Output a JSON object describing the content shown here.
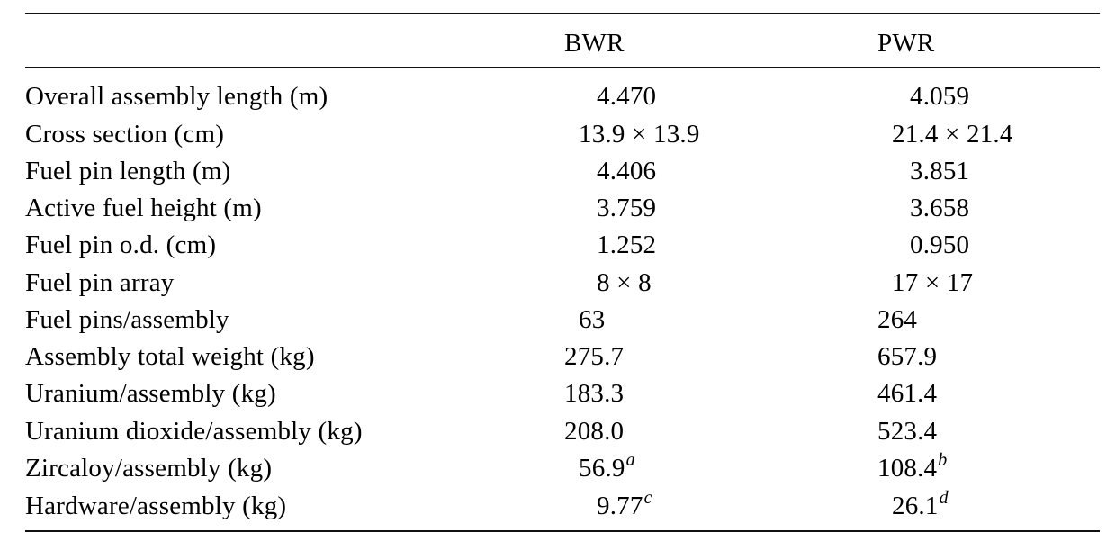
{
  "table": {
    "headers": {
      "label": "",
      "bwr": "BWR",
      "pwr": "PWR"
    },
    "rows": [
      {
        "label": "Overall assembly length (m)",
        "bwr": "4.470",
        "pwr": "4.059"
      },
      {
        "label": "Cross section (cm)",
        "bwr": "13.9 × 13.9",
        "pwr": "21.4 × 21.4"
      },
      {
        "label": "Fuel pin length (m)",
        "bwr": "4.406",
        "pwr": "3.851"
      },
      {
        "label": "Active fuel height (m)",
        "bwr": "3.759",
        "pwr": "3.658"
      },
      {
        "label": "Fuel pin o.d. (cm)",
        "bwr": "1.252",
        "pwr": "0.950"
      },
      {
        "label": "Fuel pin array",
        "bwr": "8 × 8",
        "pwr": "17 × 17"
      },
      {
        "label": "Fuel pins/assembly",
        "bwr": "63",
        "pwr": "264"
      },
      {
        "label": "Assembly total weight (kg)",
        "bwr": "275.7",
        "pwr": "657.9"
      },
      {
        "label": "Uranium/assembly (kg)",
        "bwr": "183.3",
        "pwr": "461.4"
      },
      {
        "label": "Uranium dioxide/assembly (kg)",
        "bwr": "208.0",
        "pwr": "523.4"
      },
      {
        "label": "Zircaloy/assembly (kg)",
        "bwr": "56.9",
        "bwr_note": "a",
        "pwr": "108.4",
        "pwr_note": "b"
      },
      {
        "label": "Hardware/assembly (kg)",
        "bwr": "9.77",
        "bwr_note": "c",
        "pwr": "26.1",
        "pwr_note": "d"
      }
    ]
  }
}
